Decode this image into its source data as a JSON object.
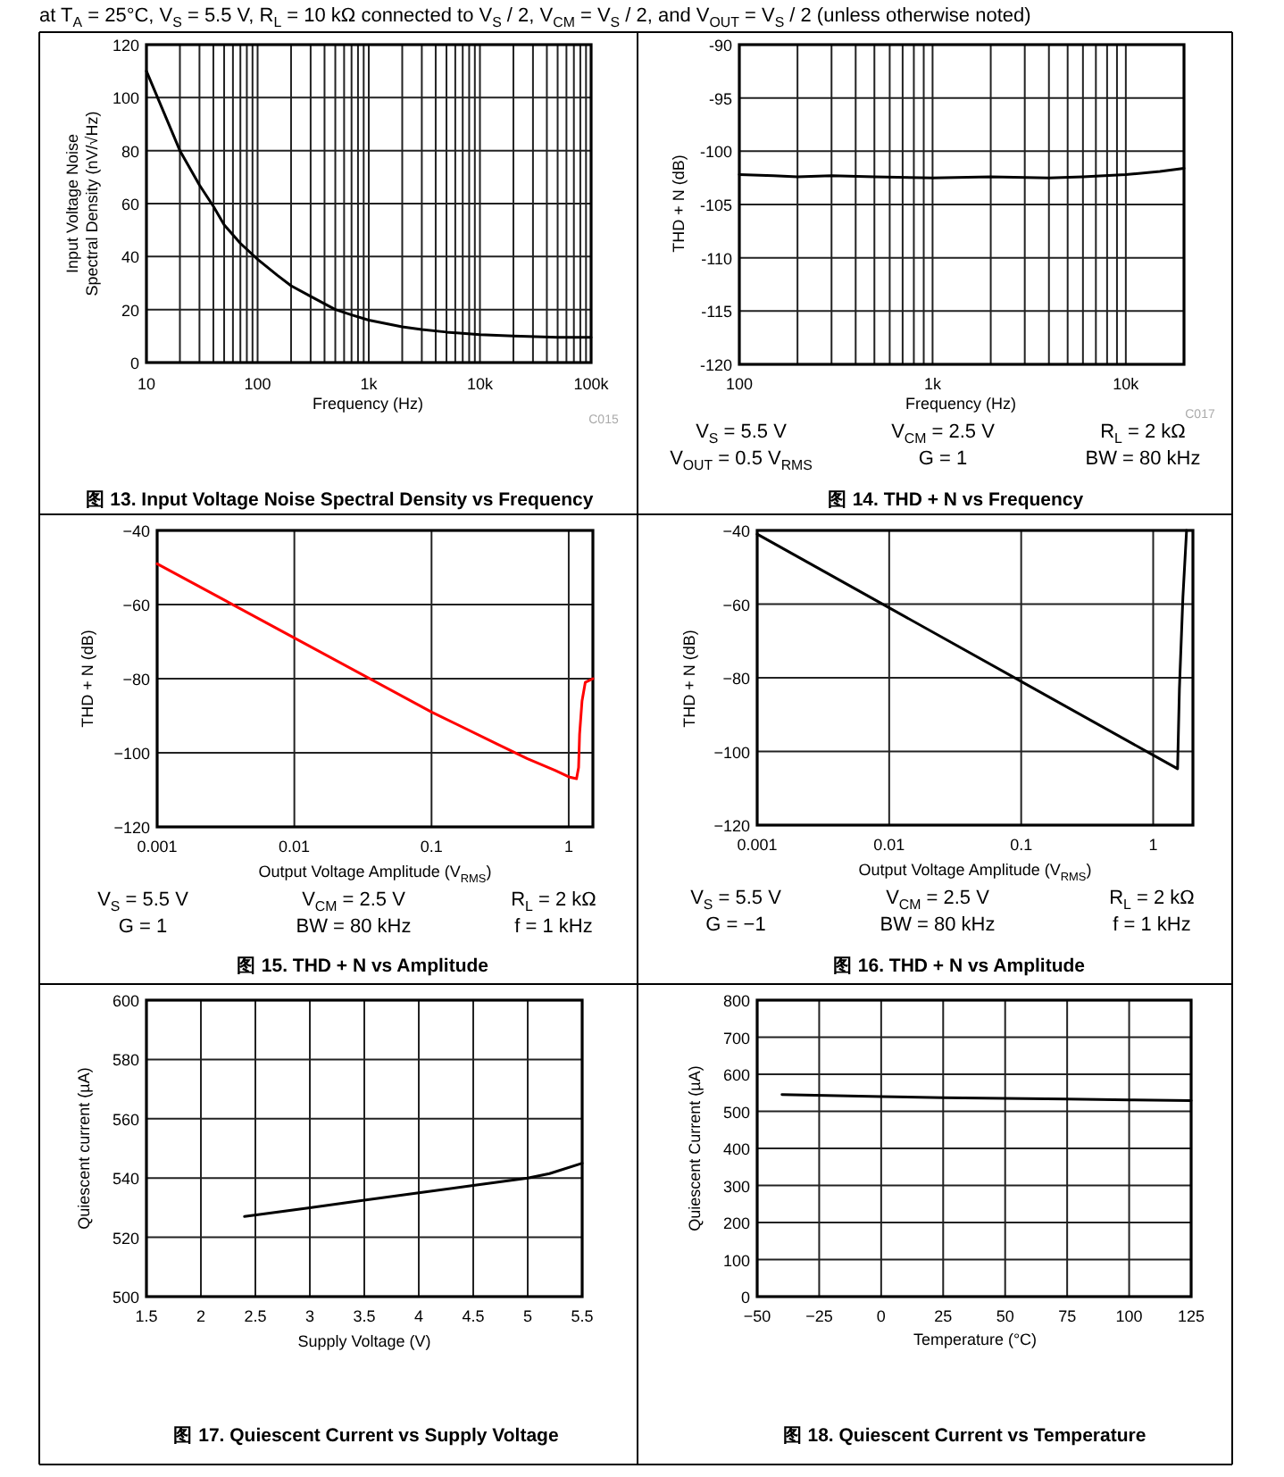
{
  "chart_data": [
    {
      "type": "line",
      "title": "图 13. Input Voltage Noise Spectral Density vs Frequency",
      "xlabel": "Frequency (Hz)",
      "ylabel": "Input Voltage Noise\nSpectral Density (nV/√Hz)",
      "annotations": [
        "at T$_{A}$ = 25°C, V$_{S}$ = 5.5 V, R$_{L}$ = 10 kΩ connected to V$_{S}$ / 2, V$_{CM}$ = V$_{S}$ / 2, and V$_{OUT}$ = V$_{S}$ / 2 (unless otherwise noted)",
        "C015"
      ],
      "log": "x",
      "grid": true,
      "xlim": [
        10,
        100000
      ],
      "ylim": [
        0,
        120
      ],
      "yticks": [
        0,
        20,
        40,
        60,
        80,
        100,
        120
      ],
      "xticks": [
        10,
        {
          "value": 20,
          "label": null
        },
        {
          "value": 30,
          "label": null
        },
        {
          "value": 40,
          "label": null
        },
        {
          "value": 50,
          "label": null
        },
        {
          "value": 60,
          "label": null
        },
        {
          "value": 70,
          "label": null
        },
        {
          "value": 80,
          "label": null
        },
        {
          "value": 90,
          "label": null
        },
        100,
        {
          "value": 200,
          "label": null
        },
        {
          "value": 300,
          "label": null
        },
        {
          "value": 400,
          "label": null
        },
        {
          "value": 500,
          "label": null
        },
        {
          "value": 600,
          "label": null
        },
        {
          "value": 700,
          "label": null
        },
        {
          "value": 800,
          "label": null
        },
        {
          "value": 900,
          "label": null
        },
        {
          "value": 1000,
          "label": "1k"
        },
        {
          "value": 2000,
          "label": null
        },
        {
          "value": 3000,
          "label": null
        },
        {
          "value": 4000,
          "label": null
        },
        {
          "value": 5000,
          "label": null
        },
        {
          "value": 6000,
          "label": null
        },
        {
          "value": 7000,
          "label": null
        },
        {
          "value": 8000,
          "label": null
        },
        {
          "value": 9000,
          "label": null
        },
        {
          "value": 10000,
          "label": "10k"
        },
        {
          "value": 20000,
          "label": null
        },
        {
          "value": 30000,
          "label": null
        },
        {
          "value": 40000,
          "label": null
        },
        {
          "value": 50000,
          "label": null
        },
        {
          "value": 60000,
          "label": null
        },
        {
          "value": 70000,
          "label": null
        },
        {
          "value": 80000,
          "label": null
        },
        {
          "value": 90000,
          "label": null
        },
        {
          "value": 100000,
          "label": "100k"
        }
      ],
      "x": [
        10,
        20,
        30,
        40,
        50,
        70,
        100,
        150,
        200,
        300,
        500,
        700,
        1000,
        2000,
        3000,
        5000,
        10000,
        20000,
        50000,
        100000
      ],
      "series": [
        {
          "color": "#000000",
          "values": [
            110,
            80,
            67,
            59,
            52,
            45,
            39,
            33,
            29,
            25,
            20,
            18,
            16,
            13.5,
            12.5,
            11.5,
            10.5,
            10,
            9.5,
            9.5
          ]
        }
      ]
    },
    {
      "type": "line",
      "title": "图 14. THD + N vs Frequency",
      "xlabel": "Frequency (Hz)",
      "ylabel": "THD + N (dB)",
      "annotations": [
        "C017",
        "V$_{S}$ = 5.5 V",
        "V$_{CM}$ = 2.5 V",
        "R$_{L}$ = 2 kΩ",
        "V$_{OUT}$ = 0.5 V$_{RMS}$",
        "G = 1",
        "BW = 80 kHz"
      ],
      "log": "x",
      "grid": true,
      "xlim": [
        100,
        20000
      ],
      "ylim": [
        -120,
        -90
      ],
      "yticks": [
        -120,
        -115,
        -110,
        -105,
        -100,
        -95,
        -90
      ],
      "xticks": [
        100,
        {
          "value": 200,
          "label": null
        },
        {
          "value": 300,
          "label": null
        },
        {
          "value": 400,
          "label": null
        },
        {
          "value": 500,
          "label": null
        },
        {
          "value": 600,
          "label": null
        },
        {
          "value": 700,
          "label": null
        },
        {
          "value": 800,
          "label": null
        },
        {
          "value": 900,
          "label": null
        },
        {
          "value": 1000,
          "label": "1k"
        },
        {
          "value": 2000,
          "label": null
        },
        {
          "value": 3000,
          "label": null
        },
        {
          "value": 4000,
          "label": null
        },
        {
          "value": 5000,
          "label": null
        },
        {
          "value": 6000,
          "label": null
        },
        {
          "value": 7000,
          "label": null
        },
        {
          "value": 8000,
          "label": null
        },
        {
          "value": 9000,
          "label": null
        },
        {
          "value": 10000,
          "label": "10k"
        }
      ],
      "x": [
        100,
        150,
        200,
        300,
        500,
        1000,
        2000,
        4000,
        6000,
        10000,
        15000,
        20000
      ],
      "series": [
        {
          "color": "#000000",
          "values": [
            -102.2,
            -102.3,
            -102.4,
            -102.3,
            -102.4,
            -102.5,
            -102.4,
            -102.5,
            -102.4,
            -102.2,
            -101.9,
            -101.6
          ]
        }
      ]
    },
    {
      "type": "line",
      "title": "图 15. THD + N vs Amplitude",
      "xlabel": "Output Voltage Amplitude (V$_{RMS}$)",
      "ylabel": "THD + N (dB)",
      "annotations": [
        "V$_{S}$ = 5.5 V",
        "V$_{CM}$ = 2.5 V",
        "R$_{L}$ = 2 kΩ",
        "G = 1",
        "BW = 80 kHz",
        "f = 1 kHz"
      ],
      "log": "x",
      "grid": true,
      "xlim": [
        0.001,
        1.5
      ],
      "ylim": [
        -120,
        -40
      ],
      "xticks": [
        0.001,
        0.01,
        0.1,
        1
      ],
      "yticks": [
        {
          "value": -120,
          "label": "−120"
        },
        {
          "value": -100,
          "label": "−100"
        },
        {
          "value": -80,
          "label": "−80"
        },
        {
          "value": -60,
          "label": "−60"
        },
        {
          "value": -40,
          "label": "−40"
        }
      ],
      "x": [
        0.001,
        0.01,
        0.1,
        0.3,
        0.5,
        0.8,
        1.0,
        1.14,
        1.18,
        1.2,
        1.25,
        1.32,
        1.5
      ],
      "series": [
        {
          "color": "#ff0000",
          "values": [
            -49,
            -69,
            -89,
            -97.6,
            -101.6,
            -104.8,
            -106.5,
            -107,
            -104,
            -95,
            -86,
            -81,
            -80
          ]
        }
      ]
    },
    {
      "type": "line",
      "title": "图 16. THD + N vs Amplitude",
      "xlabel": "Output Voltage Amplitude (V$_{RMS}$)",
      "ylabel": "THD + N (dB)",
      "annotations": [
        "V$_{S}$ = 5.5 V",
        "V$_{CM}$ = 2.5 V",
        "R$_{L}$ = 2 kΩ",
        "G = −1",
        "BW = 80 kHz",
        "f = 1 kHz"
      ],
      "log": "x",
      "grid": true,
      "xlim": [
        0.001,
        2
      ],
      "ylim": [
        -120,
        -40
      ],
      "xticks": [
        0.001,
        0.01,
        0.1,
        1
      ],
      "yticks": [
        {
          "value": -120,
          "label": "−120"
        },
        {
          "value": -100,
          "label": "−100"
        },
        {
          "value": -80,
          "label": "−80"
        },
        {
          "value": -60,
          "label": "−60"
        },
        {
          "value": -40,
          "label": "−40"
        }
      ],
      "x": [
        0.001,
        0.01,
        0.1,
        1,
        1.53,
        1.58,
        1.68,
        1.79
      ],
      "series": [
        {
          "color": "#000000",
          "values": [
            -41,
            -61,
            -81,
            -101,
            -104.7,
            -83,
            -58,
            -40
          ]
        }
      ]
    },
    {
      "type": "line",
      "title": "图 17. Quiescent Current vs Supply Voltage",
      "xlabel": "Supply Voltage (V)",
      "ylabel": "Quiescent current (µA)",
      "grid": true,
      "xlim": [
        1.5,
        5.5
      ],
      "ylim": [
        500,
        600
      ],
      "xticks": [
        1.5,
        2,
        2.5,
        3,
        3.5,
        4,
        4.5,
        5,
        5.5
      ],
      "yticks": [
        500,
        520,
        540,
        560,
        580,
        600
      ],
      "x": [
        2.4,
        3,
        3.5,
        4,
        4.5,
        5,
        5.2,
        5.5
      ],
      "series": [
        {
          "color": "#000000",
          "values": [
            527,
            530,
            532.5,
            535,
            537.5,
            540,
            541.5,
            545
          ]
        }
      ]
    },
    {
      "type": "line",
      "title": "图 18. Quiescent Current vs Temperature",
      "xlabel": "Temperature (°C)",
      "ylabel": "Quiescent Current (µA)",
      "grid": true,
      "xlim": [
        -50,
        125
      ],
      "ylim": [
        0,
        800
      ],
      "xticks": [
        {
          "value": -50,
          "label": "−50"
        },
        {
          "value": -25,
          "label": "−25"
        },
        0,
        25,
        50,
        75,
        100,
        125
      ],
      "yticks": [
        0,
        100,
        200,
        300,
        400,
        500,
        600,
        700,
        800
      ],
      "x": [
        -40,
        0,
        25,
        50,
        75,
        100,
        125
      ],
      "series": [
        {
          "color": "#000000",
          "values": [
            545,
            540,
            537,
            535,
            533,
            531,
            529
          ]
        }
      ]
    }
  ]
}
